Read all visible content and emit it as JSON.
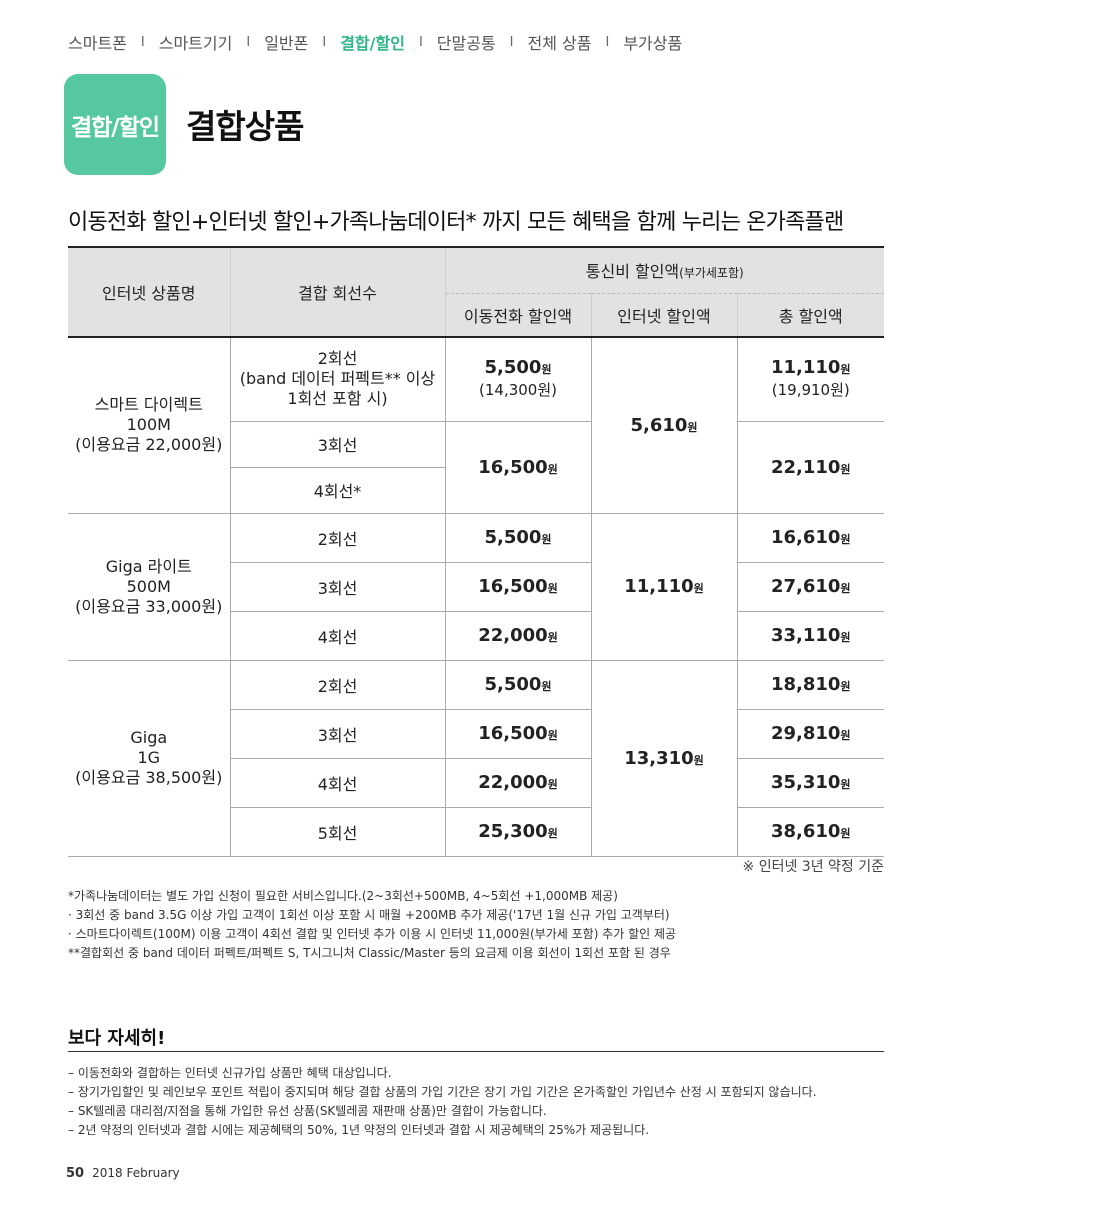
{
  "nav": {
    "items": [
      "스마트폰",
      "스마트기기",
      "일반폰",
      "결합/할인",
      "단말공통",
      "전체 상품",
      "부가상품"
    ],
    "separator": "I"
  },
  "badge": "결합/할인",
  "title": "결합상품",
  "subtitle": "이동전화 할인+인터넷 할인+가족나눔데이터* 까지 모든 혜택을 함께 누리는 온가족플랜",
  "table": {
    "header": {
      "product_name": "인터넷 상품명",
      "line_count": "결합 회선수",
      "discount_group": "통신비 할인액",
      "discount_group_note": "(부가세포함)",
      "mobile": "이동전화 할인액",
      "internet": "인터넷 할인액",
      "total": "총 할인액"
    },
    "unit": "원",
    "groups": [
      {
        "name": [
          "스마트 다이렉트",
          "100M",
          "(이용요금 22,000원)"
        ],
        "internet": "5,610",
        "rows": [
          {
            "lines": [
              "2회선",
              "(band 데이터 퍼펙트** 이상",
              "1회선 포함 시)"
            ],
            "mobile": "5,500",
            "mobile_paren": "(14,300원)",
            "total": "11,110",
            "total_paren": "(19,910원)"
          },
          {
            "lines": [
              "3회선"
            ],
            "mobile": "16,500",
            "total": "22,110"
          },
          {
            "lines": [
              "4회선*"
            ]
          }
        ]
      },
      {
        "name": [
          "Giga 라이트",
          "500M",
          "(이용요금 33,000원)"
        ],
        "internet": "11,110",
        "rows": [
          {
            "lines": [
              "2회선"
            ],
            "mobile": "5,500",
            "total": "16,610"
          },
          {
            "lines": [
              "3회선"
            ],
            "mobile": "16,500",
            "total": "27,610"
          },
          {
            "lines": [
              "4회선"
            ],
            "mobile": "22,000",
            "total": "33,110"
          }
        ]
      },
      {
        "name": [
          "Giga",
          "1G",
          "(이용요금 38,500원)"
        ],
        "internet": "13,310",
        "rows": [
          {
            "lines": [
              "2회선"
            ],
            "mobile": "5,500",
            "total": "18,810"
          },
          {
            "lines": [
              "3회선"
            ],
            "mobile": "16,500",
            "total": "29,810"
          },
          {
            "lines": [
              "4회선"
            ],
            "mobile": "22,000",
            "total": "35,310"
          },
          {
            "lines": [
              "5회선"
            ],
            "mobile": "25,300",
            "total": "38,610"
          }
        ]
      }
    ]
  },
  "table_note": "※ 인터넷 3년 약정 기준",
  "footnotes": [
    "*가족나눔데이터는 별도 가입 신청이 필요한 서비스입니다.(2~3회선+500MB, 4~5회선 +1,000MB 제공)",
    " · 3회선 중 band 3.5G 이상 가입 고객이 1회선 이상 포함 시 매월 +200MB 추가 제공('17년 1월 신규 가입 고객부터)",
    " · 스마트다이렉트(100M) 이용 고객이 4회선 결합 및 인터넷 추가 이용 시 인터넷 11,000원(부가세 포함) 추가 할인 제공",
    "**결합회선 중 band 데이터 퍼펙트/퍼펙트 S, T시그니처 Classic/Master 등의 요금제 이용 회선이 1회선 포함 된 경우"
  ],
  "details": {
    "title": "보다 자세히!",
    "items": [
      "– 이동전화와 결합하는 인터넷 신규가입 상품만 혜택 대상입니다.",
      "– 장기가입할인 및 레인보우 포인트 적립이 중지되며 해당 결합 상품의 가입 기간은 장기 가입 기간은 온가족할인 가입년수 산정 시 포함되지 않습니다.",
      "– SK텔레콤 대리점/지점을 통해 가입한 유선 상품(SK텔레콤 재판매 상품)만 결합이 가능합니다.",
      "– 2년 약정의 인터넷과 결합 시에는 제공혜택의 50%, 1년 약정의 인터넷과 결합 시 제공혜택의 25%가 제공됩니다."
    ]
  },
  "footer": {
    "page": "50",
    "issue": "2018 February"
  }
}
